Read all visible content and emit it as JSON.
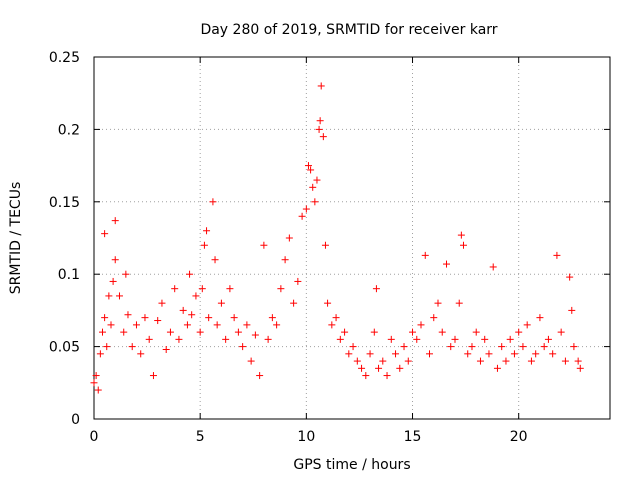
{
  "chart_data": {
    "type": "scatter",
    "title": "Day 280 of 2019, SRMTID for receiver karr",
    "xlabel": "GPS time / hours",
    "ylabel": "SRMTID / TECUs",
    "xlim": [
      0,
      24.3
    ],
    "ylim": [
      0,
      0.25
    ],
    "x_ticks": [
      0,
      5,
      10,
      15,
      20
    ],
    "x_tick_labels": [
      "0",
      "5",
      "10",
      "15",
      "20"
    ],
    "y_ticks": [
      0,
      0.05,
      0.1,
      0.15,
      0.2,
      0.25
    ],
    "y_tick_labels": [
      "0",
      "0.05",
      "0.1",
      "0.15",
      "0.2",
      "0.25"
    ],
    "grid": true,
    "marker": "+",
    "color": "#ff0000",
    "series": [
      {
        "name": "SRMTID",
        "points": [
          [
            0.0,
            0.025
          ],
          [
            0.1,
            0.03
          ],
          [
            0.2,
            0.02
          ],
          [
            0.3,
            0.045
          ],
          [
            0.4,
            0.06
          ],
          [
            0.5,
            0.07
          ],
          [
            0.5,
            0.128
          ],
          [
            0.6,
            0.05
          ],
          [
            0.7,
            0.085
          ],
          [
            0.8,
            0.065
          ],
          [
            0.9,
            0.095
          ],
          [
            1.0,
            0.137
          ],
          [
            1.0,
            0.11
          ],
          [
            1.2,
            0.085
          ],
          [
            1.4,
            0.06
          ],
          [
            1.5,
            0.1
          ],
          [
            1.6,
            0.072
          ],
          [
            1.8,
            0.05
          ],
          [
            2.0,
            0.065
          ],
          [
            2.2,
            0.045
          ],
          [
            2.4,
            0.07
          ],
          [
            2.6,
            0.055
          ],
          [
            2.8,
            0.03
          ],
          [
            3.0,
            0.068
          ],
          [
            3.2,
            0.08
          ],
          [
            3.4,
            0.048
          ],
          [
            3.6,
            0.06
          ],
          [
            3.8,
            0.09
          ],
          [
            4.0,
            0.055
          ],
          [
            4.2,
            0.075
          ],
          [
            4.4,
            0.065
          ],
          [
            4.5,
            0.1
          ],
          [
            4.6,
            0.072
          ],
          [
            4.8,
            0.085
          ],
          [
            5.0,
            0.06
          ],
          [
            5.1,
            0.09
          ],
          [
            5.2,
            0.12
          ],
          [
            5.3,
            0.13
          ],
          [
            5.4,
            0.07
          ],
          [
            5.6,
            0.15
          ],
          [
            5.7,
            0.11
          ],
          [
            5.8,
            0.065
          ],
          [
            6.0,
            0.08
          ],
          [
            6.2,
            0.055
          ],
          [
            6.4,
            0.09
          ],
          [
            6.6,
            0.07
          ],
          [
            6.8,
            0.06
          ],
          [
            7.0,
            0.05
          ],
          [
            7.2,
            0.065
          ],
          [
            7.4,
            0.04
          ],
          [
            7.6,
            0.058
          ],
          [
            7.8,
            0.03
          ],
          [
            8.0,
            0.12
          ],
          [
            8.2,
            0.055
          ],
          [
            8.4,
            0.07
          ],
          [
            8.6,
            0.065
          ],
          [
            8.8,
            0.09
          ],
          [
            9.0,
            0.11
          ],
          [
            9.2,
            0.125
          ],
          [
            9.4,
            0.08
          ],
          [
            9.6,
            0.095
          ],
          [
            9.8,
            0.14
          ],
          [
            10.0,
            0.145
          ],
          [
            10.1,
            0.175
          ],
          [
            10.2,
            0.172
          ],
          [
            10.3,
            0.16
          ],
          [
            10.4,
            0.15
          ],
          [
            10.5,
            0.165
          ],
          [
            10.6,
            0.2
          ],
          [
            10.65,
            0.206
          ],
          [
            10.7,
            0.23
          ],
          [
            10.8,
            0.195
          ],
          [
            10.9,
            0.12
          ],
          [
            11.0,
            0.08
          ],
          [
            11.2,
            0.065
          ],
          [
            11.4,
            0.07
          ],
          [
            11.6,
            0.055
          ],
          [
            11.8,
            0.06
          ],
          [
            12.0,
            0.045
          ],
          [
            12.2,
            0.05
          ],
          [
            12.4,
            0.04
          ],
          [
            12.6,
            0.035
          ],
          [
            12.8,
            0.03
          ],
          [
            13.0,
            0.045
          ],
          [
            13.2,
            0.06
          ],
          [
            13.3,
            0.09
          ],
          [
            13.4,
            0.035
          ],
          [
            13.6,
            0.04
          ],
          [
            13.8,
            0.03
          ],
          [
            14.0,
            0.055
          ],
          [
            14.2,
            0.045
          ],
          [
            14.4,
            0.035
          ],
          [
            14.6,
            0.05
          ],
          [
            14.8,
            0.04
          ],
          [
            15.0,
            0.06
          ],
          [
            15.2,
            0.055
          ],
          [
            15.4,
            0.065
          ],
          [
            15.6,
            0.113
          ],
          [
            15.8,
            0.045
          ],
          [
            16.0,
            0.07
          ],
          [
            16.2,
            0.08
          ],
          [
            16.4,
            0.06
          ],
          [
            16.6,
            0.107
          ],
          [
            16.8,
            0.05
          ],
          [
            17.0,
            0.055
          ],
          [
            17.2,
            0.08
          ],
          [
            17.3,
            0.127
          ],
          [
            17.4,
            0.12
          ],
          [
            17.6,
            0.045
          ],
          [
            17.8,
            0.05
          ],
          [
            18.0,
            0.06
          ],
          [
            18.2,
            0.04
          ],
          [
            18.4,
            0.055
          ],
          [
            18.6,
            0.045
          ],
          [
            18.8,
            0.105
          ],
          [
            19.0,
            0.035
          ],
          [
            19.2,
            0.05
          ],
          [
            19.4,
            0.04
          ],
          [
            19.6,
            0.055
          ],
          [
            19.8,
            0.045
          ],
          [
            20.0,
            0.06
          ],
          [
            20.2,
            0.05
          ],
          [
            20.4,
            0.065
          ],
          [
            20.6,
            0.04
          ],
          [
            20.8,
            0.045
          ],
          [
            21.0,
            0.07
          ],
          [
            21.2,
            0.05
          ],
          [
            21.4,
            0.055
          ],
          [
            21.6,
            0.045
          ],
          [
            21.8,
            0.113
          ],
          [
            22.0,
            0.06
          ],
          [
            22.2,
            0.04
          ],
          [
            22.4,
            0.098
          ],
          [
            22.5,
            0.075
          ],
          [
            22.6,
            0.05
          ],
          [
            22.8,
            0.04
          ],
          [
            22.9,
            0.035
          ]
        ]
      }
    ]
  }
}
